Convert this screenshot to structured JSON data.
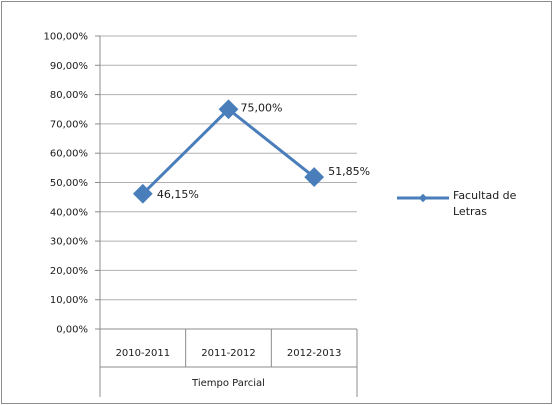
{
  "chart_data": {
    "type": "line",
    "categories": [
      "2010-2011",
      "2011-2012",
      "2012-2013"
    ],
    "group_label": "Tiempo Parcial",
    "series": [
      {
        "name": "Facultad de Letras",
        "values": [
          46.15,
          75.0,
          51.85
        ],
        "data_labels": [
          "46,15%",
          "75,00%",
          "51,85%"
        ],
        "color": "#4a7ebb"
      }
    ],
    "y_ticks": [
      "0,00%",
      "10,00%",
      "20,00%",
      "30,00%",
      "40,00%",
      "50,00%",
      "60,00%",
      "70,00%",
      "80,00%",
      "90,00%",
      "100,00%"
    ],
    "ylim": [
      0,
      100
    ],
    "grid": true,
    "legend": {
      "position": "right",
      "lines": [
        "Facultad de",
        "Letras"
      ]
    },
    "colors": {
      "series": "#4a7ebb",
      "grid": "#b0b0b0",
      "frame": "#8c8c8c"
    }
  }
}
